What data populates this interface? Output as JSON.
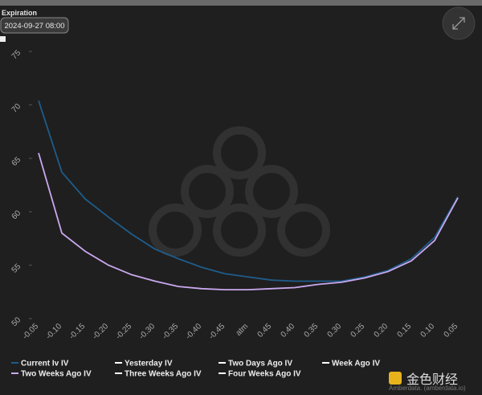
{
  "controls": {
    "expiration_label": "Expiration",
    "expiration_value": "2024-09-27 08:00"
  },
  "chart_data": {
    "type": "line",
    "categories": [
      "-0.05",
      "-0.10",
      "-0.15",
      "-0.20",
      "-0.25",
      "-0.30",
      "-0.35",
      "-0.40",
      "-0.45",
      "atm",
      "0.45",
      "0.40",
      "0.35",
      "0.30",
      "0.25",
      "0.20",
      "0.15",
      "0.10",
      "0.05"
    ],
    "ylim": [
      50,
      75
    ],
    "yticks": [
      50,
      55,
      60,
      65,
      70,
      75
    ],
    "series": [
      {
        "name": "Current Iv IV",
        "color": "#1f5c8a",
        "values": [
          70.4,
          63.7,
          61.2,
          59.5,
          57.9,
          56.5,
          55.6,
          54.8,
          54.2,
          53.9,
          53.6,
          53.5,
          53.5,
          53.5,
          53.9,
          54.5,
          55.6,
          57.6,
          61.4
        ]
      },
      {
        "name": "Yesterday IV",
        "color": "#ffffff",
        "values": [
          null,
          null,
          null,
          null,
          null,
          null,
          null,
          null,
          null,
          null,
          null,
          null,
          null,
          null,
          null,
          null,
          null,
          null,
          null
        ]
      },
      {
        "name": "Two Days Ago IV",
        "color": "#ffffff",
        "values": [
          null,
          null,
          null,
          null,
          null,
          null,
          null,
          null,
          null,
          null,
          null,
          null,
          null,
          null,
          null,
          null,
          null,
          null,
          null
        ]
      },
      {
        "name": "Week Ago IV",
        "color": "#ffffff",
        "values": [
          null,
          null,
          null,
          null,
          null,
          null,
          null,
          null,
          null,
          null,
          null,
          null,
          null,
          null,
          null,
          null,
          null,
          null,
          null
        ]
      },
      {
        "name": "Two Weeks Ago IV",
        "color": "#c9a8ee",
        "values": [
          65.5,
          58.0,
          56.3,
          55.0,
          54.1,
          53.5,
          53.0,
          52.8,
          52.7,
          52.7,
          52.8,
          52.9,
          53.2,
          53.4,
          53.8,
          54.4,
          55.4,
          57.3,
          61.3
        ]
      },
      {
        "name": "Three Weeks Ago IV",
        "color": "#ffffff",
        "values": [
          null,
          null,
          null,
          null,
          null,
          null,
          null,
          null,
          null,
          null,
          null,
          null,
          null,
          null,
          null,
          null,
          null,
          null,
          null
        ]
      },
      {
        "name": "Four Weeks Ago IV",
        "color": "#ffffff",
        "values": [
          null,
          null,
          null,
          null,
          null,
          null,
          null,
          null,
          null,
          null,
          null,
          null,
          null,
          null,
          null,
          null,
          null,
          null,
          null
        ]
      }
    ]
  },
  "footer": {
    "credit": "Amberdata. (amberdata.io)",
    "brand": "金色财经"
  }
}
